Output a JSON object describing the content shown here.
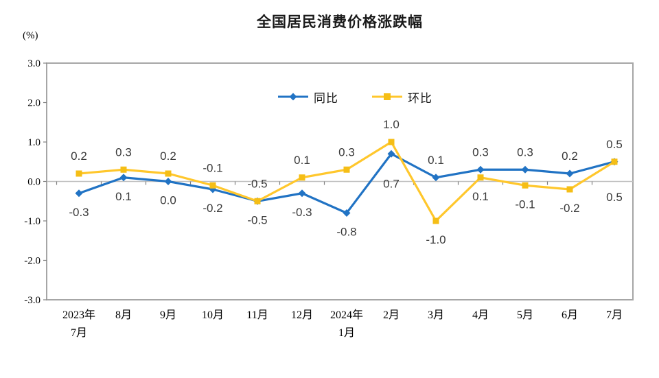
{
  "page": {
    "background": "#FFFFFF"
  },
  "chart_data": {
    "type": "line",
    "title": "全国居民消费价格涨跌幅",
    "unit": "(%)",
    "categories": [
      "2023年|7月",
      "8月",
      "9月",
      "10月",
      "11月",
      "12月",
      "2024年|1月",
      "2月",
      "3月",
      "4月",
      "5月",
      "6月",
      "7月"
    ],
    "y_axis": {
      "min": -3.0,
      "max": 3.0,
      "step": 1.0,
      "tick_labels": [
        "3.0",
        "2.0",
        "1.0",
        "0.0",
        "-1.0",
        "-2.0",
        "-3.0"
      ]
    },
    "grid": "zero-line-only",
    "x_ticks": "between-categories-on-zero-axis",
    "legend_position": "top-inside",
    "colors": {
      "yoy_line": "#2173C4",
      "mom_line": "#FFC72C",
      "mom_marker": "#F5BE16",
      "plot_border": "#A6A6A6",
      "zero_line": "#C0C0C0",
      "tick": "#808080",
      "data_label": "#3A3A3A",
      "axis_text": "#000000"
    },
    "series": [
      {
        "name": "同比",
        "marker": "diamond",
        "values": [
          -0.3,
          0.1,
          0.0,
          -0.2,
          -0.5,
          -0.3,
          -0.8,
          0.7,
          0.1,
          0.3,
          0.3,
          0.2,
          0.5
        ],
        "labels": [
          "-0.3",
          "0.1",
          "0.0",
          "-0.2",
          "-0.5",
          "-0.3",
          "-0.8",
          "0.7",
          "0.1",
          "0.3",
          "0.3",
          "0.2",
          "0.5"
        ],
        "label_pos": [
          "below",
          "below",
          "below",
          "below",
          "below",
          "below",
          "below",
          "below",
          "above",
          "above",
          "above",
          "above",
          "above"
        ],
        "label_dy_override": {
          "7": 49
        }
      },
      {
        "name": "环比",
        "marker": "square",
        "values": [
          0.2,
          0.3,
          0.2,
          -0.1,
          -0.5,
          0.1,
          0.3,
          1.0,
          -1.0,
          0.1,
          -0.1,
          -0.2,
          0.5
        ],
        "labels": [
          "0.2",
          "0.3",
          "0.2",
          "-0.1",
          "-0.5",
          "0.1",
          "0.3",
          "1.0",
          "-1.0",
          "0.1",
          "-0.1",
          "-0.2",
          "0.5"
        ],
        "label_pos": [
          "above",
          "above",
          "above",
          "above",
          "above",
          "above",
          "above",
          "above",
          "below",
          "below",
          "below",
          "below",
          "below"
        ],
        "label_dy_override": {
          "12": 57
        }
      }
    ]
  }
}
